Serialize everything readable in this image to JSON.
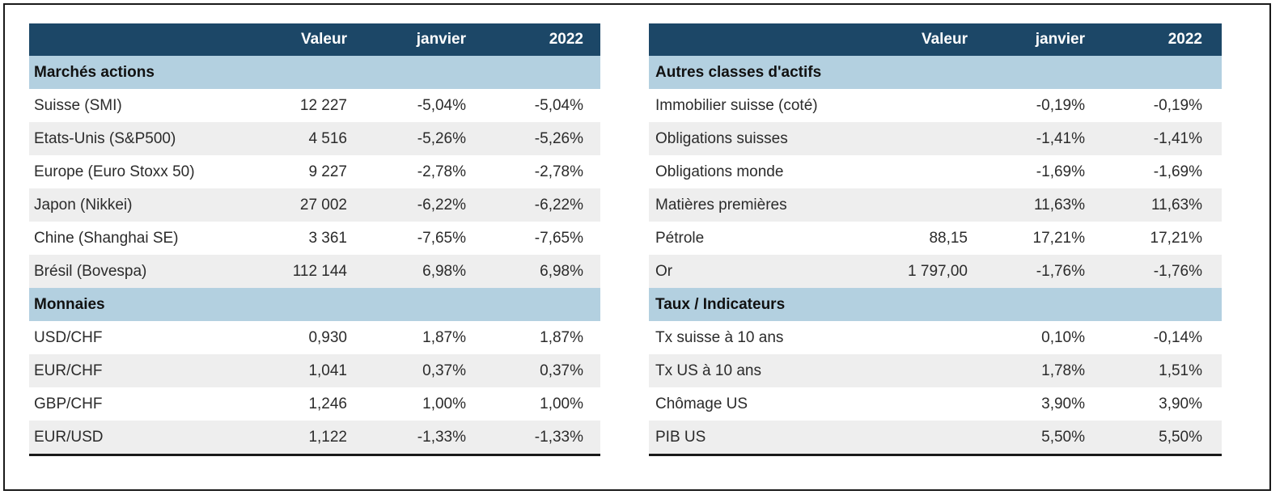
{
  "columns": [
    "Valeur",
    "janvier",
    "2022"
  ],
  "left": {
    "sections": [
      {
        "title": "Marchés actions",
        "rows": [
          {
            "name": "Suisse (SMI)",
            "valeur": "12 227",
            "janvier": "-5,04%",
            "y2022": "-5,04%"
          },
          {
            "name": "Etats-Unis (S&P500)",
            "valeur": "4 516",
            "janvier": "-5,26%",
            "y2022": "-5,26%"
          },
          {
            "name": "Europe (Euro Stoxx 50)",
            "valeur": "9 227",
            "janvier": "-2,78%",
            "y2022": "-2,78%"
          },
          {
            "name": "Japon (Nikkei)",
            "valeur": "27 002",
            "janvier": "-6,22%",
            "y2022": "-6,22%"
          },
          {
            "name": "Chine (Shanghai SE)",
            "valeur": "3 361",
            "janvier": "-7,65%",
            "y2022": "-7,65%"
          },
          {
            "name": "Brésil (Bovespa)",
            "valeur": "112 144",
            "janvier": "6,98%",
            "y2022": "6,98%"
          }
        ]
      },
      {
        "title": "Monnaies",
        "rows": [
          {
            "name": "USD/CHF",
            "valeur": "0,930",
            "janvier": "1,87%",
            "y2022": "1,87%"
          },
          {
            "name": "EUR/CHF",
            "valeur": "1,041",
            "janvier": "0,37%",
            "y2022": "0,37%"
          },
          {
            "name": "GBP/CHF",
            "valeur": "1,246",
            "janvier": "1,00%",
            "y2022": "1,00%"
          },
          {
            "name": "EUR/USD",
            "valeur": "1,122",
            "janvier": "-1,33%",
            "y2022": "-1,33%"
          }
        ]
      }
    ]
  },
  "right": {
    "sections": [
      {
        "title": "Autres classes d'actifs",
        "rows": [
          {
            "name": "Immobilier suisse (coté)",
            "valeur": "",
            "janvier": "-0,19%",
            "y2022": "-0,19%"
          },
          {
            "name": "Obligations suisses",
            "valeur": "",
            "janvier": "-1,41%",
            "y2022": "-1,41%"
          },
          {
            "name": "Obligations monde",
            "valeur": "",
            "janvier": "-1,69%",
            "y2022": "-1,69%"
          },
          {
            "name": "Matières premières",
            "valeur": "",
            "janvier": "11,63%",
            "y2022": "11,63%"
          },
          {
            "name": "Pétrole",
            "valeur": "88,15",
            "janvier": "17,21%",
            "y2022": "17,21%"
          },
          {
            "name": "Or",
            "valeur": "1 797,00",
            "janvier": "-1,76%",
            "y2022": "-1,76%"
          }
        ]
      },
      {
        "title": "Taux / Indicateurs",
        "rows": [
          {
            "name": "Tx suisse à 10 ans",
            "valeur": "",
            "janvier": "0,10%",
            "y2022": "-0,14%"
          },
          {
            "name": "Tx US à 10 ans",
            "valeur": "",
            "janvier": "1,78%",
            "y2022": "1,51%"
          },
          {
            "name": "Chômage US",
            "valeur": "",
            "janvier": "3,90%",
            "y2022": "3,90%"
          },
          {
            "name": "PIB US",
            "valeur": "",
            "janvier": "5,50%",
            "y2022": "5,50%"
          }
        ]
      }
    ]
  },
  "colors": {
    "header_bg": "#1c4767",
    "section_bg": "#b3d0e0",
    "row_shade": "#eeeeee"
  }
}
